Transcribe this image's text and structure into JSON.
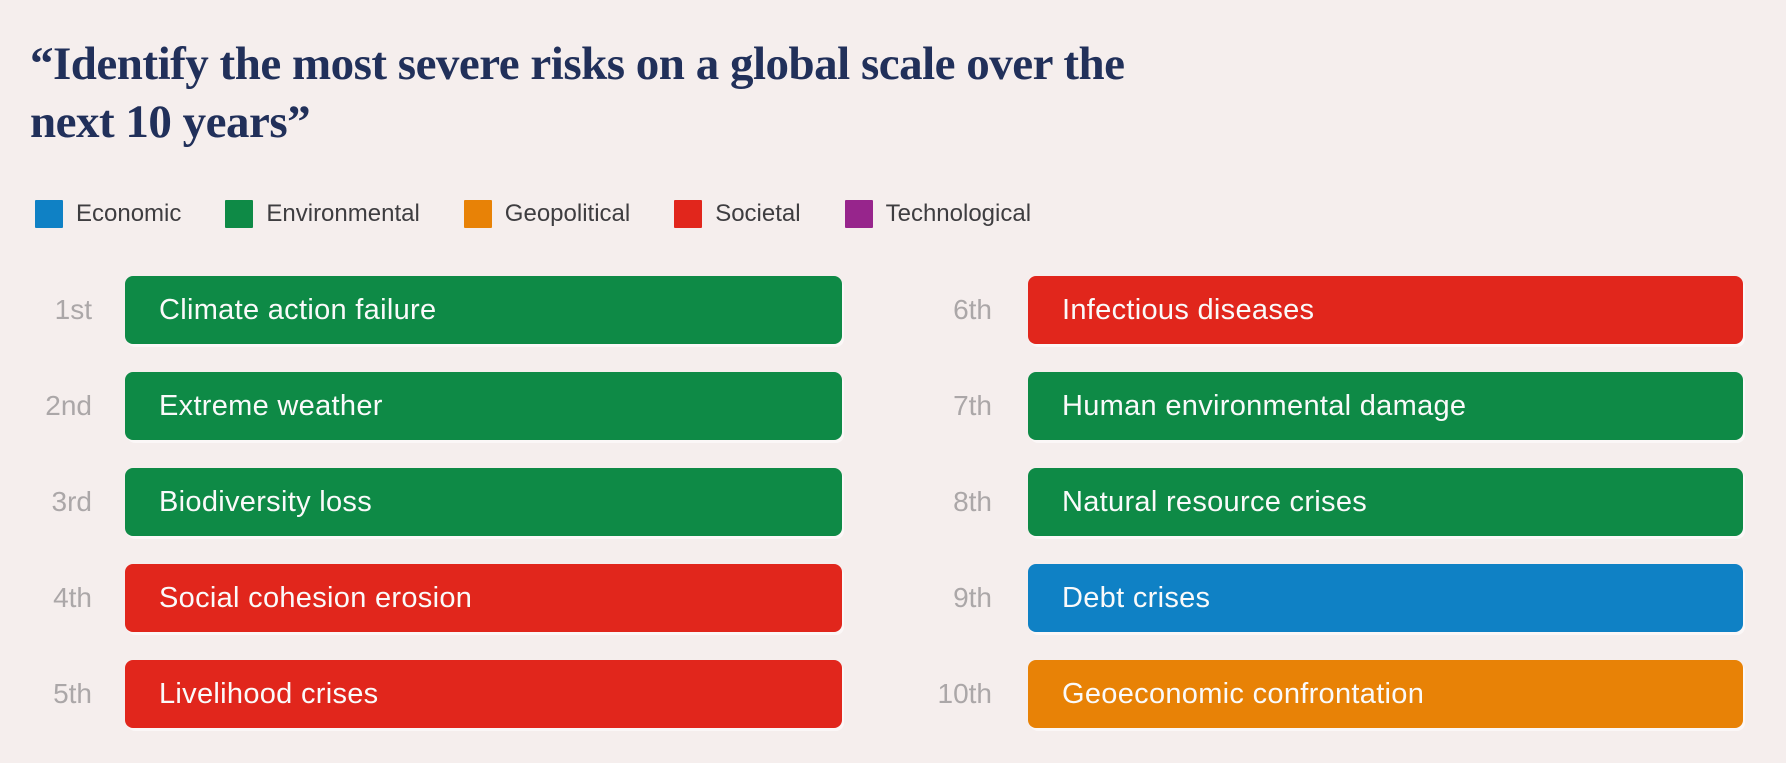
{
  "title": {
    "full": "“Identify the most severe risks on a global scale over the next 10 years”",
    "line1": "“Identify the most severe risks on a global scale over the",
    "line2": "next 10 years”"
  },
  "colors": {
    "background": "#F5EEED",
    "title_text": "#21305A",
    "rank_label": "#ABA7A8",
    "legend_text": "#3E3D40",
    "bar_text": "#FAFAFA",
    "economic": "#0F81C5",
    "environmental": "#0E8A46",
    "geopolitical": "#E88206",
    "societal": "#E1261C",
    "technological": "#97258C"
  },
  "legend": {
    "items": [
      {
        "label": "Economic",
        "color": "#0F81C5"
      },
      {
        "label": "Environmental",
        "color": "#0E8A46"
      },
      {
        "label": "Geopolitical",
        "color": "#E88206"
      },
      {
        "label": "Societal",
        "color": "#E1261C"
      },
      {
        "label": "Technological",
        "color": "#97258C"
      }
    ]
  },
  "chart_data": {
    "type": "bar",
    "title": "“Identify the most severe risks on a global scale over the next 10 years”",
    "legend_position": "top",
    "columns": 2,
    "category_legend": [
      "Economic",
      "Environmental",
      "Geopolitical",
      "Societal",
      "Technological"
    ],
    "ranking": [
      {
        "rank": "1st",
        "risk": "Climate action failure",
        "category": "Environmental",
        "color": "#0E8A46"
      },
      {
        "rank": "2nd",
        "risk": "Extreme weather",
        "category": "Environmental",
        "color": "#0E8A46"
      },
      {
        "rank": "3rd",
        "risk": "Biodiversity loss",
        "category": "Environmental",
        "color": "#0E8A46"
      },
      {
        "rank": "4th",
        "risk": "Social cohesion erosion",
        "category": "Societal",
        "color": "#E1261C"
      },
      {
        "rank": "5th",
        "risk": "Livelihood crises",
        "category": "Societal",
        "color": "#E1261C"
      },
      {
        "rank": "6th",
        "risk": "Infectious diseases",
        "category": "Societal",
        "color": "#E1261C"
      },
      {
        "rank": "7th",
        "risk": "Human environmental damage",
        "category": "Environmental",
        "color": "#0E8A46"
      },
      {
        "rank": "8th",
        "risk": "Natural resource crises",
        "category": "Environmental",
        "color": "#0E8A46"
      },
      {
        "rank": "9th",
        "risk": "Debt crises",
        "category": "Economic",
        "color": "#0F81C5"
      },
      {
        "rank": "10th",
        "risk": "Geoeconomic confrontation",
        "category": "Geopolitical",
        "color": "#E88206"
      }
    ]
  }
}
